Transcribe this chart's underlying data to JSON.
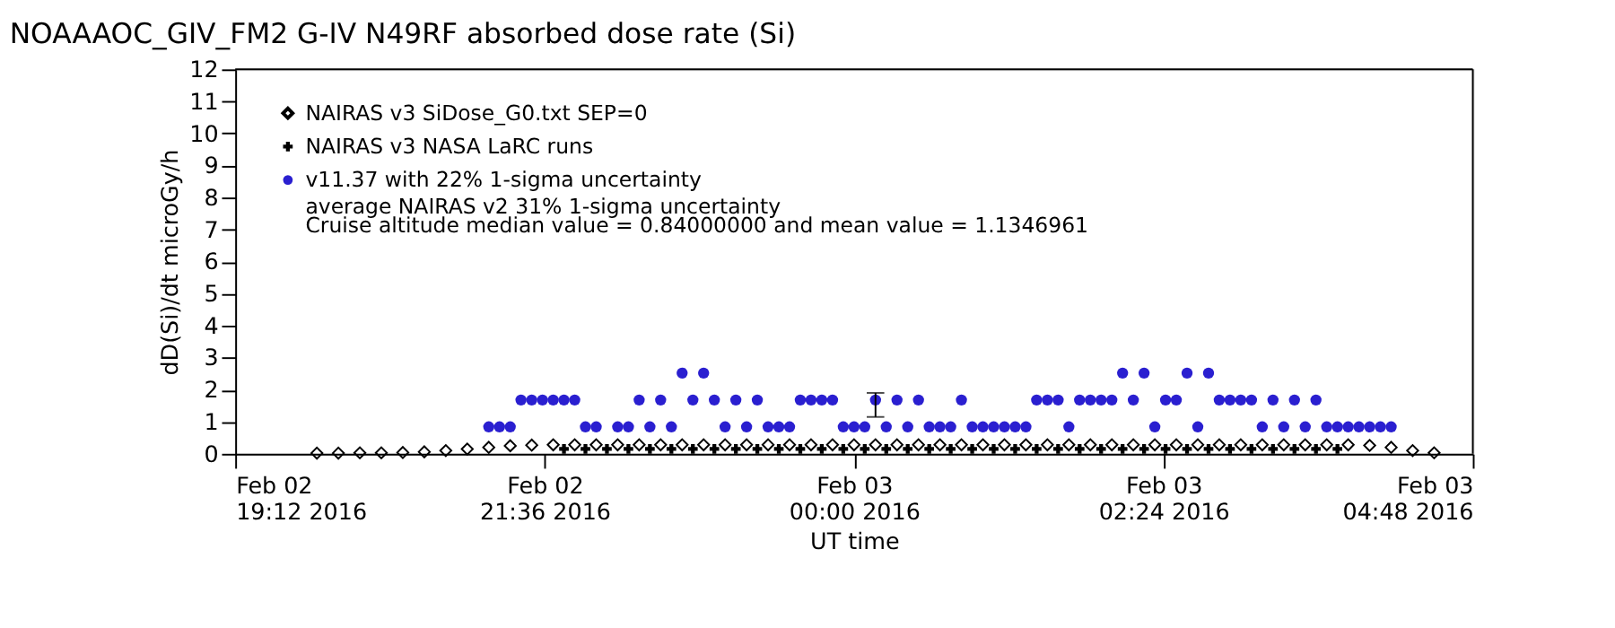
{
  "chart_data": {
    "type": "scatter",
    "title": "NOAAAOC_GIV_FM2 G-IV   N49RF   absorbed dose rate (Si)",
    "xlabel": "UT time",
    "ylabel": "dD(Si)/dt microGy/h",
    "xlim": [
      "2016-02-02T19:12",
      "2016-02-03T04:48"
    ],
    "xticks": [
      {
        "value": "2016-02-02T19:12",
        "label": "Feb 02\n19:12 2016"
      },
      {
        "value": "2016-02-02T21:36",
        "label": "Feb 02\n21:36 2016"
      },
      {
        "value": "2016-02-03T00:00",
        "label": "Feb 03\n00:00 2016"
      },
      {
        "value": "2016-02-03T02:24",
        "label": "Feb 03\n02:24 2016"
      },
      {
        "value": "2016-02-03T04:48",
        "label": "Feb 03\n04:48 2016"
      }
    ],
    "ylim": [
      0,
      12
    ],
    "yticks": [
      0,
      1,
      2,
      3,
      4,
      5,
      6,
      7,
      8,
      9,
      10,
      11,
      12
    ],
    "grid": false,
    "legend": "top left",
    "annotations": [
      "average NAIRAS v2 31% 1-sigma uncertainty",
      "Cruise altitude median value = 0.84000000 and mean value = 1.1346961"
    ],
    "series": [
      {
        "name": "NAIRAS v3 SiDose_G0.txt SEP=0",
        "color": "#000000",
        "marker": "diamond",
        "x": [
          "2016-02-02T19:50",
          "2016-02-02T20:00",
          "2016-02-02T20:10",
          "2016-02-02T20:20",
          "2016-02-02T20:30",
          "2016-02-02T20:40",
          "2016-02-02T20:50",
          "2016-02-02T21:00",
          "2016-02-02T21:10",
          "2016-02-02T21:20",
          "2016-02-02T21:30",
          "2016-02-02T21:40",
          "2016-02-02T21:50",
          "2016-02-02T22:00",
          "2016-02-02T22:10",
          "2016-02-02T22:20",
          "2016-02-02T22:30",
          "2016-02-02T22:40",
          "2016-02-02T22:50",
          "2016-02-02T23:00",
          "2016-02-02T23:10",
          "2016-02-02T23:20",
          "2016-02-02T23:30",
          "2016-02-02T23:40",
          "2016-02-02T23:50",
          "2016-02-03T00:00",
          "2016-02-03T00:10",
          "2016-02-03T00:20",
          "2016-02-03T00:30",
          "2016-02-03T00:40",
          "2016-02-03T00:50",
          "2016-02-03T01:00",
          "2016-02-03T01:10",
          "2016-02-03T01:20",
          "2016-02-03T01:30",
          "2016-02-03T01:40",
          "2016-02-03T01:50",
          "2016-02-03T02:00",
          "2016-02-03T02:10",
          "2016-02-03T02:20",
          "2016-02-03T02:30",
          "2016-02-03T02:40",
          "2016-02-03T02:50",
          "2016-02-03T03:00",
          "2016-02-03T03:10",
          "2016-02-03T03:20",
          "2016-02-03T03:30",
          "2016-02-03T03:40",
          "2016-02-03T03:50",
          "2016-02-03T04:00",
          "2016-02-03T04:10",
          "2016-02-03T04:20",
          "2016-02-03T04:30"
        ],
        "values": [
          0.02,
          0.02,
          0.03,
          0.03,
          0.04,
          0.06,
          0.1,
          0.15,
          0.2,
          0.25,
          0.27,
          0.28,
          0.28,
          0.28,
          0.28,
          0.28,
          0.28,
          0.28,
          0.28,
          0.28,
          0.28,
          0.28,
          0.28,
          0.28,
          0.28,
          0.28,
          0.28,
          0.28,
          0.28,
          0.28,
          0.28,
          0.28,
          0.28,
          0.28,
          0.28,
          0.28,
          0.28,
          0.28,
          0.28,
          0.28,
          0.28,
          0.28,
          0.28,
          0.28,
          0.28,
          0.28,
          0.28,
          0.28,
          0.28,
          0.26,
          0.2,
          0.1,
          0.03
        ]
      },
      {
        "name": "NAIRAS v3 NASA LaRC runs",
        "color": "#000000",
        "marker": "cross",
        "x": [
          "2016-02-02T21:45",
          "2016-02-02T21:55",
          "2016-02-02T22:05",
          "2016-02-02T22:15",
          "2016-02-02T22:25",
          "2016-02-02T22:35",
          "2016-02-02T22:45",
          "2016-02-02T22:55",
          "2016-02-02T23:05",
          "2016-02-02T23:15",
          "2016-02-02T23:25",
          "2016-02-02T23:35",
          "2016-02-02T23:45",
          "2016-02-02T23:55",
          "2016-02-03T00:05",
          "2016-02-03T00:15",
          "2016-02-03T00:25",
          "2016-02-03T00:35",
          "2016-02-03T00:45",
          "2016-02-03T00:55",
          "2016-02-03T01:05",
          "2016-02-03T01:15",
          "2016-02-03T01:25",
          "2016-02-03T01:35",
          "2016-02-03T01:45",
          "2016-02-03T01:55",
          "2016-02-03T02:05",
          "2016-02-03T02:15",
          "2016-02-03T02:25",
          "2016-02-03T02:35",
          "2016-02-03T02:45",
          "2016-02-03T02:55",
          "2016-02-03T03:05",
          "2016-02-03T03:15",
          "2016-02-03T03:25",
          "2016-02-03T03:35",
          "2016-02-03T03:45"
        ],
        "values": [
          0.15,
          0.15,
          0.15,
          0.15,
          0.15,
          0.15,
          0.15,
          0.15,
          0.15,
          0.15,
          0.15,
          0.15,
          0.15,
          0.15,
          0.15,
          0.15,
          0.15,
          0.15,
          0.15,
          0.15,
          0.15,
          0.15,
          0.15,
          0.15,
          0.15,
          0.15,
          0.15,
          0.15,
          0.15,
          0.15,
          0.15,
          0.15,
          0.15,
          0.15,
          0.15,
          0.15,
          0.15
        ]
      },
      {
        "name": "v11.37 with 22% 1-sigma uncertainty",
        "color": "#2a1fd0",
        "marker": "circle",
        "x": [
          "2016-02-02T21:10",
          "2016-02-02T21:15",
          "2016-02-02T21:20",
          "2016-02-02T21:25",
          "2016-02-02T21:30",
          "2016-02-02T21:35",
          "2016-02-02T21:40",
          "2016-02-02T21:45",
          "2016-02-02T21:50",
          "2016-02-02T21:55",
          "2016-02-02T22:00",
          "2016-02-02T22:05",
          "2016-02-02T22:10",
          "2016-02-02T22:15",
          "2016-02-02T22:20",
          "2016-02-02T22:25",
          "2016-02-02T22:30",
          "2016-02-02T22:35",
          "2016-02-02T22:40",
          "2016-02-02T22:45",
          "2016-02-02T22:50",
          "2016-02-02T22:55",
          "2016-02-02T23:00",
          "2016-02-02T23:05",
          "2016-02-02T23:10",
          "2016-02-02T23:15",
          "2016-02-02T23:20",
          "2016-02-02T23:25",
          "2016-02-02T23:30",
          "2016-02-02T23:35",
          "2016-02-02T23:40",
          "2016-02-02T23:45",
          "2016-02-02T23:50",
          "2016-02-02T23:55",
          "2016-02-03T00:00",
          "2016-02-03T00:05",
          "2016-02-03T00:10",
          "2016-02-03T00:15",
          "2016-02-03T00:20",
          "2016-02-03T00:25",
          "2016-02-03T00:30",
          "2016-02-03T00:35",
          "2016-02-03T00:40",
          "2016-02-03T00:45",
          "2016-02-03T00:50",
          "2016-02-03T00:55",
          "2016-02-03T01:00",
          "2016-02-03T01:05",
          "2016-02-03T01:10",
          "2016-02-03T01:15",
          "2016-02-03T01:20",
          "2016-02-03T01:25",
          "2016-02-03T01:30",
          "2016-02-03T01:35",
          "2016-02-03T01:40",
          "2016-02-03T01:45",
          "2016-02-03T01:50",
          "2016-02-03T01:55",
          "2016-02-03T02:00",
          "2016-02-03T02:05",
          "2016-02-03T02:10",
          "2016-02-03T02:15",
          "2016-02-03T02:20",
          "2016-02-03T02:25",
          "2016-02-03T02:30",
          "2016-02-03T02:35",
          "2016-02-03T02:40",
          "2016-02-03T02:45",
          "2016-02-03T02:50",
          "2016-02-03T02:55",
          "2016-02-03T03:00",
          "2016-02-03T03:05",
          "2016-02-03T03:10",
          "2016-02-03T03:15",
          "2016-02-03T03:20",
          "2016-02-03T03:25",
          "2016-02-03T03:30",
          "2016-02-03T03:35",
          "2016-02-03T03:40",
          "2016-02-03T03:45",
          "2016-02-03T03:50",
          "2016-02-03T03:55",
          "2016-02-03T04:00",
          "2016-02-03T04:05",
          "2016-02-03T04:10"
        ],
        "values": [
          0.84,
          0.84,
          0.84,
          1.68,
          1.68,
          1.68,
          1.68,
          1.68,
          1.68,
          0.84,
          0.84,
          null,
          0.84,
          0.84,
          1.68,
          0.84,
          1.68,
          0.84,
          2.52,
          1.68,
          2.52,
          1.68,
          0.84,
          1.68,
          0.84,
          1.68,
          0.84,
          0.84,
          0.84,
          1.68,
          1.68,
          1.68,
          1.68,
          0.84,
          0.84,
          0.84,
          1.68,
          0.84,
          1.68,
          0.84,
          1.68,
          0.84,
          0.84,
          0.84,
          1.68,
          0.84,
          0.84,
          0.84,
          0.84,
          0.84,
          0.84,
          1.68,
          1.68,
          1.68,
          0.84,
          1.68,
          1.68,
          1.68,
          1.68,
          2.52,
          1.68,
          2.52,
          0.84,
          1.68,
          1.68,
          2.52,
          0.84,
          2.52,
          1.68,
          1.68,
          1.68,
          1.68,
          0.84,
          1.68,
          0.84,
          1.68,
          0.84,
          1.68,
          0.84,
          0.84,
          0.84,
          0.84,
          0.84,
          0.84,
          0.84
        ],
        "errors": [
          null,
          null,
          null,
          null,
          null,
          null,
          null,
          null,
          null,
          null,
          null,
          null,
          null,
          null,
          null,
          null,
          null,
          null,
          null,
          null,
          null,
          null,
          null,
          null,
          null,
          null,
          null,
          null,
          null,
          null,
          null,
          null,
          null,
          null,
          null,
          null,
          [
            1.15,
            1.9
          ],
          null,
          null,
          null,
          null,
          null,
          null,
          null,
          null,
          null,
          null,
          null,
          null,
          null,
          null,
          null,
          null,
          null,
          null,
          null,
          null,
          null,
          null,
          null,
          null,
          null,
          null,
          null,
          null,
          null,
          null,
          null,
          null,
          null,
          null,
          null,
          null,
          null,
          null,
          null,
          null,
          null,
          null,
          null,
          null,
          null,
          null,
          null,
          null
        ]
      }
    ]
  }
}
